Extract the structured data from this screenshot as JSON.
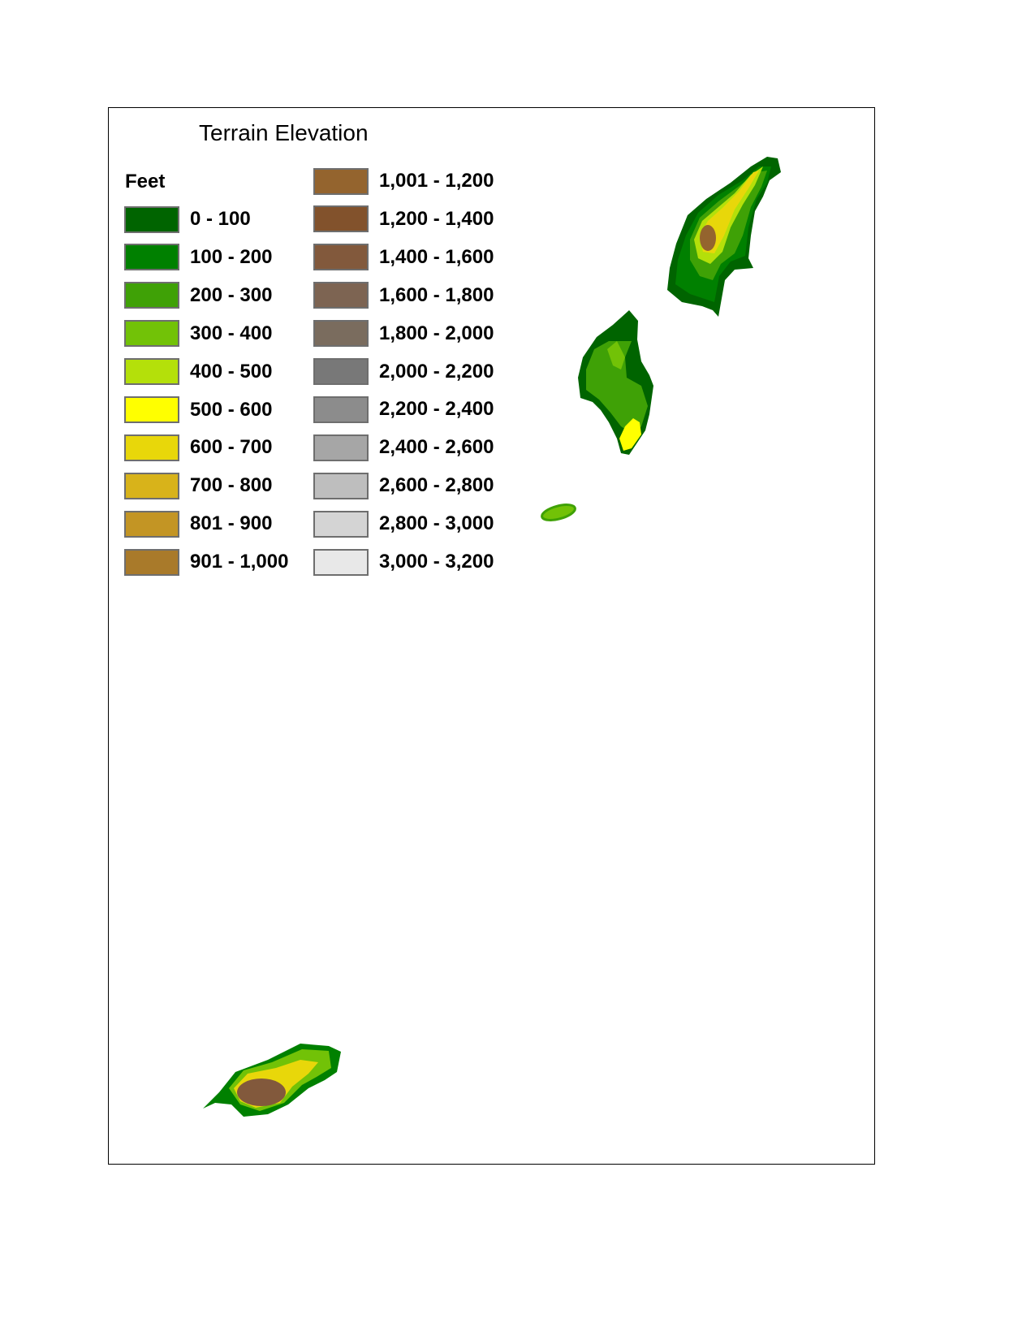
{
  "map": {
    "title": "Terrain Elevation",
    "legend": {
      "units": "Feet",
      "left_column": [
        {
          "label": "0 - 100",
          "color": "#006400"
        },
        {
          "label": "100 - 200",
          "color": "#008000"
        },
        {
          "label": "200 - 300",
          "color": "#3fa106"
        },
        {
          "label": "300 - 400",
          "color": "#72c207"
        },
        {
          "label": "400 - 500",
          "color": "#b4e00a"
        },
        {
          "label": "500 - 600",
          "color": "#ffff00"
        },
        {
          "label": "600 - 700",
          "color": "#e8d70a"
        },
        {
          "label": "700 - 800",
          "color": "#d8b31a"
        },
        {
          "label": "801 - 900",
          "color": "#c39524"
        },
        {
          "label": "901 - 1,000",
          "color": "#a97a2a"
        }
      ],
      "right_column": [
        {
          "label": "1,001 - 1,200",
          "color": "#94642e"
        },
        {
          "label": "1,200 - 1,400",
          "color": "#82522c"
        },
        {
          "label": "1,400 - 1,600",
          "color": "#82593c"
        },
        {
          "label": "1,600 - 1,800",
          "color": "#7d6452"
        },
        {
          "label": "1,800 - 2,000",
          "color": "#7a6c5e"
        },
        {
          "label": "2,000 - 2,200",
          "color": "#787878"
        },
        {
          "label": "2,200 - 2,400",
          "color": "#8c8c8c"
        },
        {
          "label": "2,400 - 2,600",
          "color": "#a6a6a6"
        },
        {
          "label": "2,600 - 2,800",
          "color": "#bebebe"
        },
        {
          "label": "2,800 - 3,000",
          "color": "#d4d4d4"
        },
        {
          "label": "3,000 - 3,200",
          "color": "#e8e8e8"
        }
      ]
    }
  }
}
